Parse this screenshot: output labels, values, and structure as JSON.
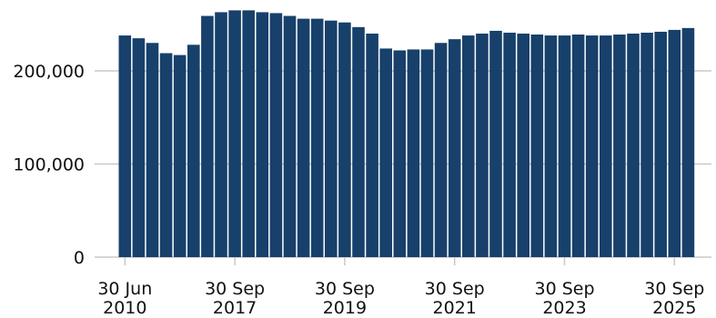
{
  "chart_data": {
    "type": "bar",
    "bar_color": "#17406b",
    "grid_color": "#c8c8c8",
    "grid": true,
    "ylim": [
      0,
      270000
    ],
    "y_ticks": [
      {
        "value": 0,
        "label": "0"
      },
      {
        "value": 100000,
        "label": "100,000"
      },
      {
        "value": 200000,
        "label": "200,000"
      }
    ],
    "x_ticks": [
      {
        "bar_index": 0,
        "line1": "30 Jun",
        "line2": "2010"
      },
      {
        "bar_index": 8,
        "line1": "30 Sep",
        "line2": "2017"
      },
      {
        "bar_index": 16,
        "line1": "30 Sep",
        "line2": "2019"
      },
      {
        "bar_index": 24,
        "line1": "30 Sep",
        "line2": "2021"
      },
      {
        "bar_index": 32,
        "line1": "30 Sep",
        "line2": "2023"
      },
      {
        "bar_index": 40,
        "line1": "30 Sep",
        "line2": "2025"
      }
    ],
    "values": [
      238000,
      235000,
      230000,
      219000,
      217000,
      228000,
      259000,
      263000,
      265000,
      265000,
      263000,
      262000,
      259000,
      256000,
      256000,
      254000,
      252000,
      247000,
      240000,
      224000,
      222000,
      223000,
      223000,
      230000,
      234000,
      238000,
      240000,
      243000,
      241000,
      240000,
      239000,
      238000,
      238000,
      239000,
      238000,
      238000,
      239000,
      240000,
      241000,
      242000,
      244000,
      246000
    ]
  }
}
